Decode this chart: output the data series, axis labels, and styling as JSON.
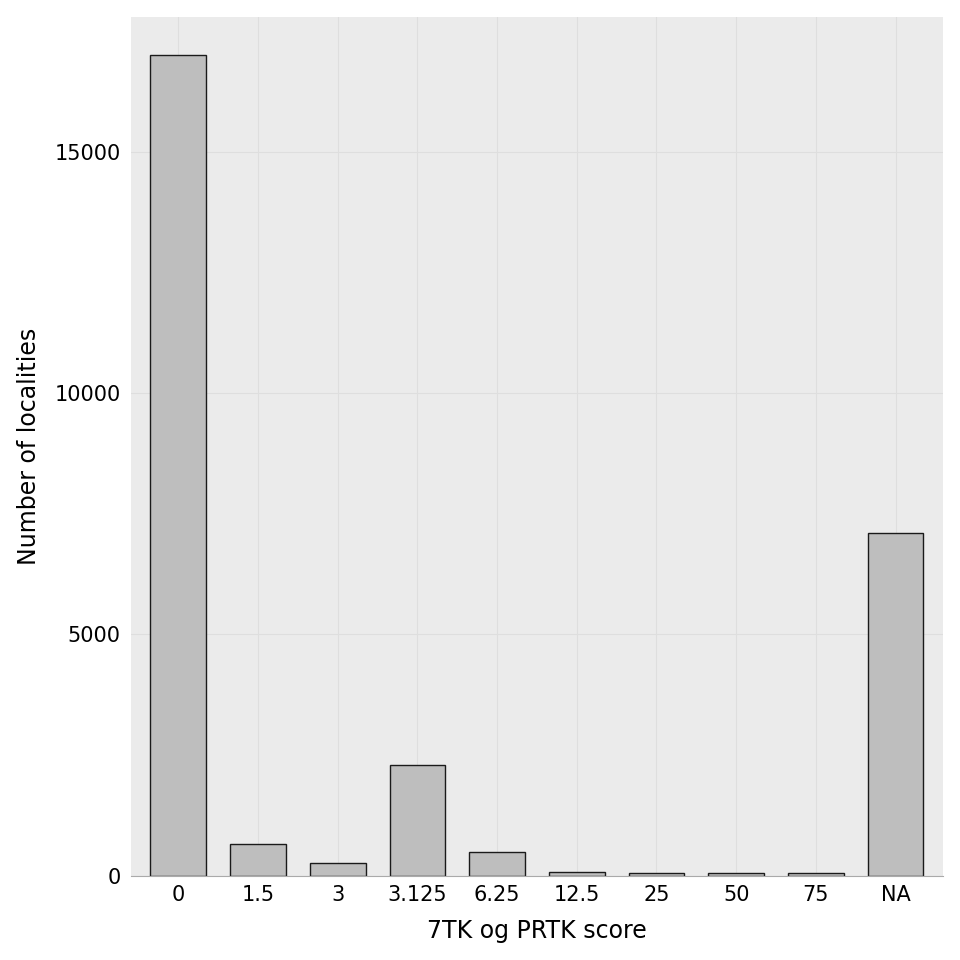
{
  "categories": [
    "0",
    "1.5",
    "3",
    "3.125",
    "6.25",
    "12.5",
    "25",
    "50",
    "75",
    "NA"
  ],
  "values": [
    17000,
    650,
    270,
    2300,
    500,
    75,
    50,
    60,
    50,
    7100
  ],
  "bar_color": "#BEBEBE",
  "bar_edgecolor": "#1a1a1a",
  "bar_edgewidth": 1.0,
  "bar_width": 0.7,
  "xlabel": "7TK og PRTK score",
  "ylabel": "Number of localities",
  "xlabel_fontsize": 17,
  "ylabel_fontsize": 17,
  "tick_fontsize": 15,
  "yticks": [
    0,
    5000,
    10000,
    15000
  ],
  "ylim": [
    0,
    17800
  ],
  "background_color": "#FFFFFF",
  "grid_color": "#DEDEDE",
  "panel_background": "#EBEBEB"
}
